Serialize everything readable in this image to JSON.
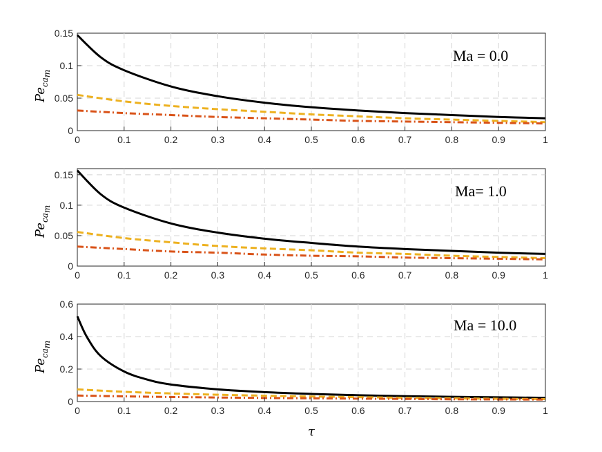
{
  "chart_data": [
    {
      "type": "line",
      "annotation": "Ma = 0.0",
      "ylabel": "Pe",
      "ylabel_sub": "ca",
      "ylabel_subsub": "m",
      "xlabel": "",
      "xlim": [
        0,
        1
      ],
      "ylim": [
        0,
        0.15
      ],
      "xticks": [
        "0",
        "0.1",
        "0.2",
        "0.3",
        "0.4",
        "0.5",
        "0.6",
        "0.7",
        "0.8",
        "0.9",
        "1"
      ],
      "yticks": [
        "0",
        "0.05",
        "0.1",
        "0.15"
      ],
      "ytick_values": [
        0,
        0.05,
        0.1,
        0.15
      ],
      "grid": true,
      "series": [
        {
          "name": "series-1",
          "color": "#000000",
          "dash": "solid",
          "x": [
            0,
            0.05,
            0.1,
            0.2,
            0.3,
            0.4,
            0.5,
            0.6,
            0.7,
            0.8,
            0.9,
            1.0
          ],
          "y": [
            0.147,
            0.113,
            0.093,
            0.068,
            0.053,
            0.043,
            0.036,
            0.031,
            0.027,
            0.024,
            0.021,
            0.019
          ]
        },
        {
          "name": "series-2",
          "color": "#EDB120",
          "dash": "dashed",
          "x": [
            0,
            0.1,
            0.2,
            0.3,
            0.4,
            0.5,
            0.6,
            0.7,
            0.8,
            0.9,
            1.0
          ],
          "y": [
            0.055,
            0.045,
            0.038,
            0.033,
            0.029,
            0.025,
            0.022,
            0.019,
            0.017,
            0.015,
            0.013
          ]
        },
        {
          "name": "series-3",
          "color": "#D95319",
          "dash": "dashdot",
          "x": [
            0,
            0.1,
            0.2,
            0.3,
            0.4,
            0.5,
            0.6,
            0.7,
            0.8,
            0.9,
            1.0
          ],
          "y": [
            0.031,
            0.027,
            0.024,
            0.021,
            0.019,
            0.017,
            0.015,
            0.014,
            0.013,
            0.012,
            0.011
          ]
        }
      ]
    },
    {
      "type": "line",
      "annotation": "Ma= 1.0",
      "ylabel": "Pe",
      "ylabel_sub": "ca",
      "ylabel_subsub": "m",
      "xlabel": "",
      "xlim": [
        0,
        1
      ],
      "ylim": [
        0,
        0.16
      ],
      "xticks": [
        "0",
        "0.1",
        "0.2",
        "0.3",
        "0.4",
        "0.5",
        "0.6",
        "0.7",
        "0.8",
        "0.9",
        "1"
      ],
      "yticks": [
        "0",
        "0.05",
        "0.1",
        "0.15"
      ],
      "ytick_values": [
        0,
        0.05,
        0.1,
        0.15
      ],
      "grid": true,
      "series": [
        {
          "name": "series-1",
          "color": "#000000",
          "dash": "solid",
          "x": [
            0,
            0.05,
            0.1,
            0.2,
            0.3,
            0.4,
            0.5,
            0.6,
            0.7,
            0.8,
            0.9,
            1.0
          ],
          "y": [
            0.157,
            0.118,
            0.096,
            0.07,
            0.055,
            0.045,
            0.038,
            0.032,
            0.028,
            0.025,
            0.022,
            0.02
          ]
        },
        {
          "name": "series-2",
          "color": "#EDB120",
          "dash": "dashed",
          "x": [
            0,
            0.1,
            0.2,
            0.3,
            0.4,
            0.5,
            0.6,
            0.7,
            0.8,
            0.9,
            1.0
          ],
          "y": [
            0.056,
            0.046,
            0.039,
            0.033,
            0.029,
            0.026,
            0.022,
            0.02,
            0.017,
            0.015,
            0.013
          ]
        },
        {
          "name": "series-3",
          "color": "#D95319",
          "dash": "dashdot",
          "x": [
            0,
            0.1,
            0.2,
            0.3,
            0.4,
            0.5,
            0.6,
            0.7,
            0.8,
            0.9,
            1.0
          ],
          "y": [
            0.032,
            0.028,
            0.024,
            0.022,
            0.019,
            0.017,
            0.016,
            0.014,
            0.013,
            0.012,
            0.011
          ]
        }
      ]
    },
    {
      "type": "line",
      "annotation": "Ma = 10.0",
      "ylabel": "Pe",
      "ylabel_sub": "ca",
      "ylabel_subsub": "m",
      "xlabel": "τ",
      "xlim": [
        0,
        1
      ],
      "ylim": [
        0,
        0.6
      ],
      "xticks": [
        "0",
        "0.1",
        "0.2",
        "0.3",
        "0.4",
        "0.5",
        "0.6",
        "0.7",
        "0.8",
        "0.9",
        "1"
      ],
      "yticks": [
        "0",
        "0.2",
        "0.4",
        "0.6"
      ],
      "ytick_values": [
        0,
        0.2,
        0.4,
        0.6
      ],
      "grid": true,
      "series": [
        {
          "name": "series-1",
          "color": "#000000",
          "dash": "solid",
          "x": [
            0,
            0.02,
            0.05,
            0.1,
            0.15,
            0.2,
            0.3,
            0.4,
            0.5,
            0.6,
            0.7,
            0.8,
            0.9,
            1.0
          ],
          "y": [
            0.525,
            0.4,
            0.28,
            0.185,
            0.135,
            0.105,
            0.075,
            0.058,
            0.047,
            0.039,
            0.033,
            0.029,
            0.026,
            0.023
          ]
        },
        {
          "name": "series-2",
          "color": "#EDB120",
          "dash": "dashed",
          "x": [
            0,
            0.1,
            0.2,
            0.3,
            0.4,
            0.5,
            0.6,
            0.7,
            0.8,
            0.9,
            1.0
          ],
          "y": [
            0.075,
            0.06,
            0.05,
            0.042,
            0.036,
            0.031,
            0.027,
            0.023,
            0.02,
            0.017,
            0.015
          ]
        },
        {
          "name": "series-3",
          "color": "#D95319",
          "dash": "dashdot",
          "x": [
            0,
            0.1,
            0.2,
            0.3,
            0.4,
            0.5,
            0.6,
            0.7,
            0.8,
            0.9,
            1.0
          ],
          "y": [
            0.037,
            0.032,
            0.028,
            0.025,
            0.022,
            0.02,
            0.018,
            0.016,
            0.014,
            0.013,
            0.012
          ]
        }
      ]
    }
  ]
}
